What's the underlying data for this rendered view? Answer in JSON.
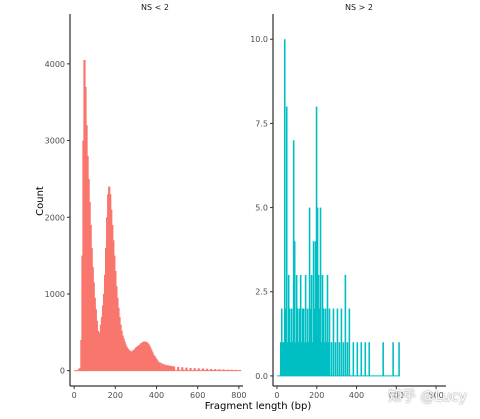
{
  "chart_data": [
    {
      "type": "bar",
      "panel": "NS < 2",
      "xlabel": "Fragment length (bp)",
      "ylabel": "Count",
      "xlim": [
        -20,
        820
      ],
      "ylim": [
        -200,
        4650
      ],
      "xticks": [
        0,
        200,
        400,
        600,
        800
      ],
      "yticks": [
        0,
        1000,
        2000,
        3000,
        4000
      ],
      "ytick_labels": [
        "0",
        "1000",
        "2000",
        "3000",
        "4000"
      ],
      "color": "#F8766D",
      "bins": [
        [
          0,
          0
        ],
        [
          10,
          0
        ],
        [
          20,
          30
        ],
        [
          30,
          400
        ],
        [
          35,
          1500
        ],
        [
          40,
          3000
        ],
        [
          45,
          4050
        ],
        [
          50,
          3700
        ],
        [
          55,
          3200
        ],
        [
          60,
          2800
        ],
        [
          65,
          2500
        ],
        [
          70,
          2200
        ],
        [
          75,
          1900
        ],
        [
          80,
          1600
        ],
        [
          85,
          1350
        ],
        [
          90,
          1150
        ],
        [
          95,
          950
        ],
        [
          100,
          800
        ],
        [
          105,
          650
        ],
        [
          110,
          520
        ],
        [
          115,
          480
        ],
        [
          120,
          500
        ],
        [
          125,
          600
        ],
        [
          130,
          700
        ],
        [
          135,
          850
        ],
        [
          140,
          1000
        ],
        [
          145,
          1250
        ],
        [
          150,
          1600
        ],
        [
          155,
          2000
        ],
        [
          160,
          2300
        ],
        [
          165,
          2400
        ],
        [
          170,
          2300
        ],
        [
          175,
          2100
        ],
        [
          180,
          1900
        ],
        [
          185,
          1700
        ],
        [
          190,
          1500
        ],
        [
          195,
          1300
        ],
        [
          200,
          1100
        ],
        [
          205,
          950
        ],
        [
          210,
          820
        ],
        [
          215,
          700
        ],
        [
          220,
          600
        ],
        [
          225,
          520
        ],
        [
          230,
          460
        ],
        [
          235,
          420
        ],
        [
          240,
          380
        ],
        [
          245,
          340
        ],
        [
          250,
          310
        ],
        [
          255,
          290
        ],
        [
          260,
          270
        ],
        [
          265,
          260
        ],
        [
          270,
          250
        ],
        [
          275,
          250
        ],
        [
          280,
          260
        ],
        [
          285,
          270
        ],
        [
          290,
          280
        ],
        [
          295,
          300
        ],
        [
          300,
          310
        ],
        [
          305,
          320
        ],
        [
          310,
          330
        ],
        [
          315,
          340
        ],
        [
          320,
          355
        ],
        [
          325,
          365
        ],
        [
          330,
          375
        ],
        [
          335,
          380
        ],
        [
          340,
          380
        ],
        [
          345,
          375
        ],
        [
          350,
          365
        ],
        [
          355,
          350
        ],
        [
          360,
          330
        ],
        [
          365,
          300
        ],
        [
          370,
          270
        ],
        [
          375,
          240
        ],
        [
          380,
          210
        ],
        [
          385,
          190
        ],
        [
          390,
          170
        ],
        [
          395,
          150
        ],
        [
          400,
          130
        ],
        [
          410,
          110
        ],
        [
          420,
          95
        ],
        [
          430,
          85
        ],
        [
          440,
          75
        ],
        [
          450,
          70
        ],
        [
          460,
          65
        ],
        [
          470,
          60
        ],
        [
          480,
          55
        ],
        [
          500,
          50
        ],
        [
          520,
          45
        ],
        [
          540,
          40
        ],
        [
          560,
          35
        ],
        [
          580,
          32
        ],
        [
          600,
          30
        ],
        [
          620,
          28
        ],
        [
          640,
          25
        ],
        [
          660,
          22
        ],
        [
          680,
          20
        ],
        [
          700,
          18
        ],
        [
          720,
          16
        ],
        [
          740,
          14
        ],
        [
          760,
          12
        ],
        [
          780,
          10
        ],
        [
          800,
          8
        ]
      ]
    },
    {
      "type": "bar",
      "panel": "NS > 2",
      "xlabel": "Fragment length (bp)",
      "ylabel": "Count",
      "xlim": [
        -20,
        850
      ],
      "ylim": [
        -0.3,
        10.75
      ],
      "xticks": [
        0,
        200,
        400,
        600,
        800
      ],
      "yticks": [
        0,
        2.5,
        5,
        7.5,
        10
      ],
      "ytick_labels": [
        "0.0",
        "2.5",
        "5.0",
        "7.5",
        "10.0"
      ],
      "color": "#00BFC4",
      "bins": [
        [
          15,
          1
        ],
        [
          20,
          2
        ],
        [
          25,
          1
        ],
        [
          30,
          1
        ],
        [
          35,
          10
        ],
        [
          40,
          2
        ],
        [
          45,
          8
        ],
        [
          50,
          1
        ],
        [
          55,
          3
        ],
        [
          60,
          2
        ],
        [
          65,
          1
        ],
        [
          70,
          2
        ],
        [
          75,
          1
        ],
        [
          80,
          7
        ],
        [
          85,
          4
        ],
        [
          90,
          1
        ],
        [
          95,
          3
        ],
        [
          100,
          2
        ],
        [
          105,
          1
        ],
        [
          110,
          2
        ],
        [
          115,
          3
        ],
        [
          120,
          1
        ],
        [
          125,
          2
        ],
        [
          130,
          2
        ],
        [
          135,
          1
        ],
        [
          140,
          3
        ],
        [
          145,
          1
        ],
        [
          150,
          2
        ],
        [
          155,
          1
        ],
        [
          160,
          5
        ],
        [
          165,
          2
        ],
        [
          170,
          3
        ],
        [
          175,
          1
        ],
        [
          180,
          4
        ],
        [
          185,
          2
        ],
        [
          190,
          4
        ],
        [
          195,
          8
        ],
        [
          200,
          5
        ],
        [
          205,
          3
        ],
        [
          210,
          2
        ],
        [
          215,
          5
        ],
        [
          220,
          1
        ],
        [
          225,
          3
        ],
        [
          230,
          2
        ],
        [
          235,
          1
        ],
        [
          240,
          2
        ],
        [
          245,
          1
        ],
        [
          250,
          3
        ],
        [
          255,
          1
        ],
        [
          260,
          2
        ],
        [
          270,
          1
        ],
        [
          280,
          2
        ],
        [
          290,
          1
        ],
        [
          300,
          2
        ],
        [
          310,
          1
        ],
        [
          320,
          2
        ],
        [
          330,
          1
        ],
        [
          340,
          3
        ],
        [
          350,
          1
        ],
        [
          360,
          2
        ],
        [
          380,
          1
        ],
        [
          400,
          1
        ],
        [
          420,
          1
        ],
        [
          440,
          1
        ],
        [
          460,
          1
        ],
        [
          530,
          1
        ],
        [
          580,
          1
        ],
        [
          610,
          1
        ]
      ]
    }
  ],
  "watermark": "知乎 @Lucy"
}
